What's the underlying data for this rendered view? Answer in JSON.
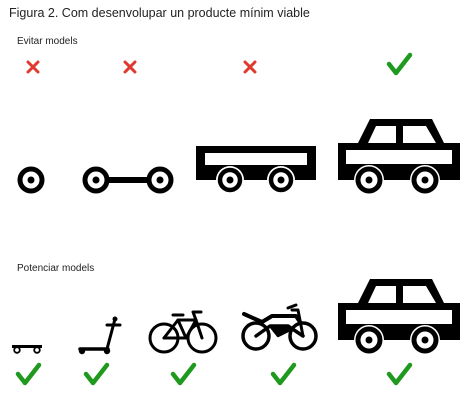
{
  "figure": {
    "title": "Figura 2. Com desenvolupar un producte mínim viable"
  },
  "sections": {
    "avoid": {
      "label": "Evitar models",
      "steps": [
        {
          "icon": "wheel-icon",
          "mark": "cross-icon"
        },
        {
          "icon": "axle-icon",
          "mark": "cross-icon"
        },
        {
          "icon": "car-chassis-icon",
          "mark": "cross-icon"
        },
        {
          "icon": "car-icon",
          "mark": "check-icon"
        }
      ]
    },
    "promote": {
      "label": "Potenciar models",
      "steps": [
        {
          "icon": "skateboard-icon",
          "mark": "check-icon"
        },
        {
          "icon": "scooter-icon",
          "mark": "check-icon"
        },
        {
          "icon": "bicycle-icon",
          "mark": "check-icon"
        },
        {
          "icon": "motorcycle-icon",
          "mark": "check-icon"
        },
        {
          "icon": "car-icon",
          "mark": "check-icon"
        }
      ]
    }
  },
  "colors": {
    "cross": "#e03a2e",
    "check": "#1f9a1f",
    "ink": "#000000"
  }
}
